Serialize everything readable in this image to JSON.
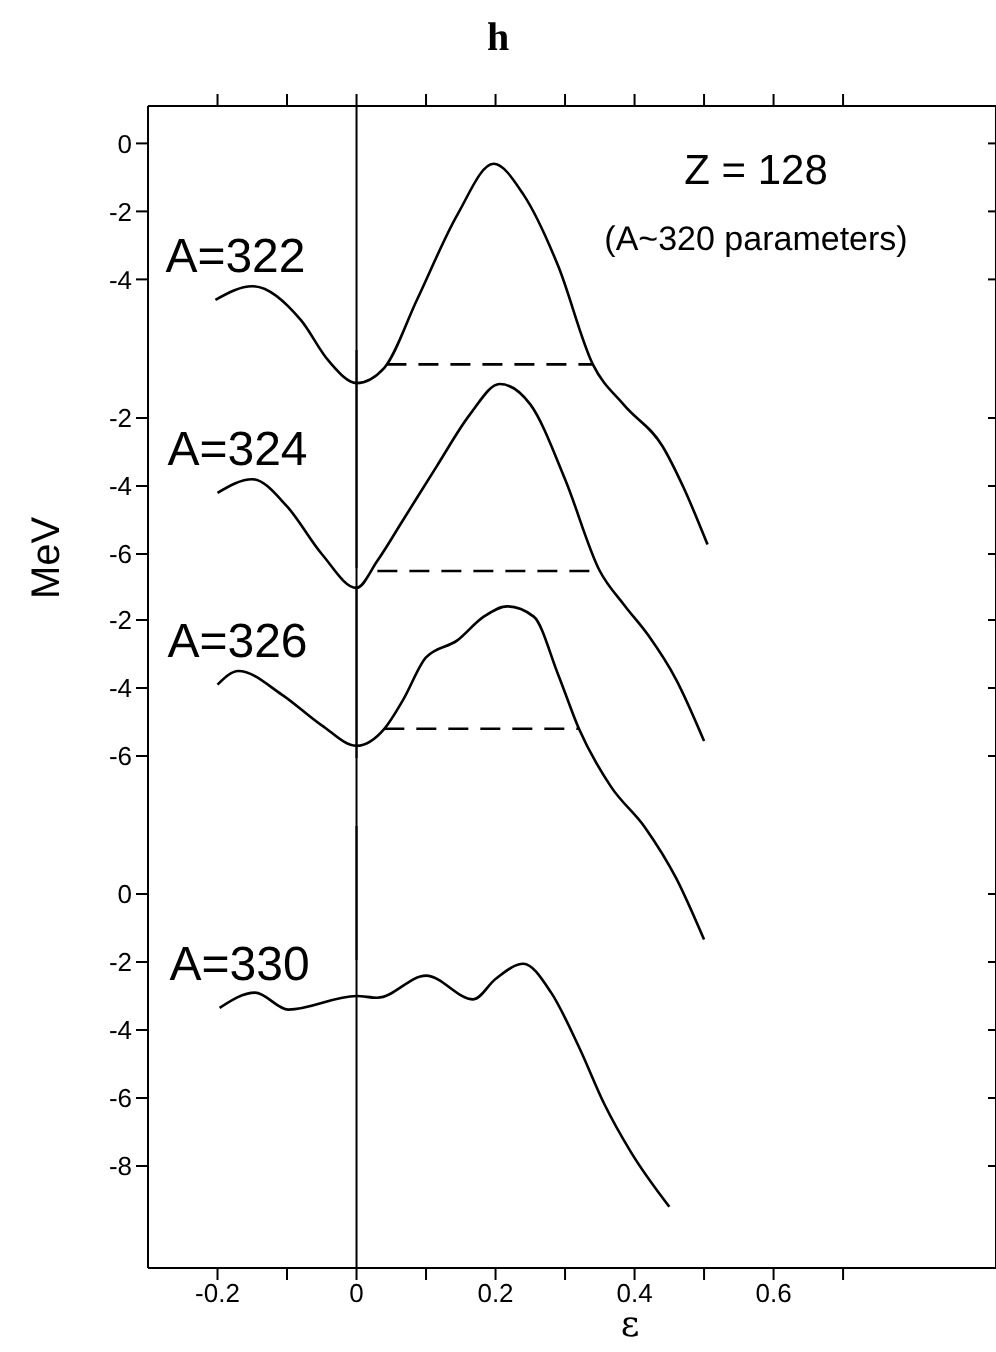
{
  "chart_data": [
    {
      "type": "line",
      "title": "h",
      "annotations": [
        "Z = 128",
        "(A~320 parameters)"
      ],
      "xlim": [
        -0.3,
        0.92
      ],
      "xticks": [
        -0.2,
        {
          "value": -0.1,
          "label": null
        },
        0,
        {
          "value": 0.1,
          "label": null
        },
        0.2,
        {
          "value": 0.3,
          "label": null
        },
        0.4,
        {
          "value": 0.5,
          "label": null
        },
        0.6,
        {
          "value": 0.7,
          "label": null
        }
      ],
      "ylim": [
        -12.5,
        1.1
      ],
      "yticks": [
        0,
        -2,
        -4
      ],
      "tick_labels": "y",
      "ref_lines": [
        {
          "axis": "x",
          "value": 0
        }
      ],
      "series": [
        {
          "name": "A=322",
          "color": "#000000",
          "x": [
            -0.203,
            -0.15,
            -0.08,
            -0.04,
            0,
            0.04,
            0.087,
            0.145,
            0.197,
            0.24,
            0.29,
            0.34,
            0.385,
            0.44,
            0.47,
            0.505
          ],
          "values": [
            -4.6,
            -4.2,
            -5.2,
            -6.4,
            -7.05,
            -6.6,
            -4.6,
            -2.1,
            -0.6,
            -1.5,
            -3.6,
            -6.5,
            -7.7,
            -8.9,
            -10.1,
            -11.8
          ]
        },
        {
          "type": "line",
          "line_style": "dashed",
          "color": "#000000",
          "x": [
            0.043,
            0.34
          ],
          "values": [
            -6.5,
            -6.5
          ]
        }
      ]
    },
    {
      "type": "line",
      "xlim": [
        -0.3,
        0.92
      ],
      "ylim": [
        -12,
        0
      ],
      "yticks": [
        -2,
        -4,
        -6
      ],
      "tick_labels": "y",
      "ref_lines": [
        {
          "axis": "x",
          "value": 0
        }
      ],
      "series": [
        {
          "name": "A=324",
          "color": "#000000",
          "x": [
            -0.2,
            -0.15,
            -0.1,
            -0.05,
            0,
            0.03,
            0.067,
            0.116,
            0.163,
            0.206,
            0.25,
            0.3,
            0.35,
            0.385,
            0.42,
            0.46,
            0.5
          ],
          "values": [
            -4.2,
            -3.8,
            -4.6,
            -6.0,
            -7.0,
            -6.2,
            -5.0,
            -3.4,
            -1.9,
            -1.0,
            -1.6,
            -3.8,
            -6.5,
            -7.5,
            -8.4,
            -9.7,
            -11.5
          ]
        },
        {
          "type": "line",
          "line_style": "dashed",
          "color": "#000000",
          "x": [
            0.03,
            0.35
          ],
          "values": [
            -6.5,
            -6.5
          ]
        }
      ]
    },
    {
      "type": "line",
      "ylabel": "MeV",
      "xlim": [
        -0.3,
        0.92
      ],
      "ylim": [
        -12,
        -1
      ],
      "yticks": [
        -2,
        -4,
        -6
      ],
      "tick_labels": "y",
      "ref_lines": [
        {
          "axis": "x",
          "value": 0
        }
      ],
      "series": [
        {
          "name": "A=326",
          "color": "#000000",
          "x": [
            -0.2,
            -0.17,
            -0.107,
            -0.05,
            0,
            0.04,
            0.067,
            0.1,
            0.145,
            0.183,
            0.217,
            0.255,
            0.29,
            0.32,
            0.366,
            0.415,
            0.46,
            0.5
          ],
          "values": [
            -3.9,
            -3.5,
            -4.2,
            -5.1,
            -5.7,
            -5.2,
            -4.35,
            -3.1,
            -2.6,
            -1.9,
            -1.6,
            -1.9,
            -3.6,
            -5.2,
            -6.9,
            -8.1,
            -9.6,
            -11.4
          ]
        },
        {
          "type": "line",
          "line_style": "dashed",
          "color": "#000000",
          "x": [
            0.04,
            0.32
          ],
          "values": [
            -5.2,
            -5.2
          ]
        }
      ]
    },
    {
      "type": "line",
      "xlabel": "ε",
      "xlim": [
        -0.3,
        0.92
      ],
      "xticks": [
        -0.2,
        {
          "value": -0.1,
          "label": null
        },
        0,
        {
          "value": 0.1,
          "label": null
        },
        0.2,
        {
          "value": 0.3,
          "label": null
        },
        0.4,
        {
          "value": 0.5,
          "label": null
        },
        0.6,
        {
          "value": 0.7,
          "label": null
        }
      ],
      "ylim": [
        -11,
        2
      ],
      "yticks": [
        0,
        -2,
        -4,
        -6,
        -8
      ],
      "ref_lines": [
        {
          "axis": "x",
          "value": 0
        }
      ],
      "series": [
        {
          "name": "A=330",
          "color": "#000000",
          "x": [
            -0.197,
            -0.146,
            -0.098,
            0,
            0.03,
            0.1,
            0.168,
            0.2,
            0.24,
            0.28,
            0.32,
            0.357,
            0.395,
            0.45
          ],
          "values": [
            -3.35,
            -2.9,
            -3.4,
            -3.0,
            -3.05,
            -2.4,
            -3.1,
            -2.5,
            -2.05,
            -2.9,
            -4.5,
            -6.2,
            -7.6,
            -9.2
          ]
        }
      ]
    }
  ]
}
